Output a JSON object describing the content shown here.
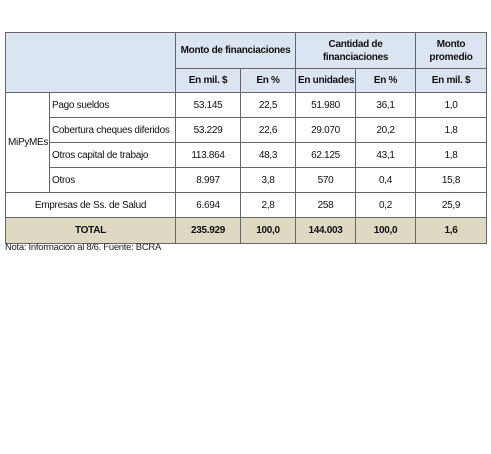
{
  "table": {
    "group_headers": [
      "Monto de financiaciones",
      "Cantidad de financiaciones",
      "Monto promedio"
    ],
    "sub_headers": [
      "En mil. $",
      "En %",
      "En unidades",
      "En %",
      "En mil. $"
    ],
    "group_label": "MiPyMEs",
    "group_rows": [
      {
        "label": "Pago sueldos",
        "cells": [
          "53.145",
          "22,5",
          "51.980",
          "36,1",
          "1,0"
        ]
      },
      {
        "label": "Cobertura cheques diferidos",
        "cells": [
          "53.229",
          "22,6",
          "29.070",
          "20,2",
          "1,8"
        ]
      },
      {
        "label": "Otros capital de trabajo",
        "cells": [
          "113.864",
          "48,3",
          "62.125",
          "43,1",
          "1,8"
        ]
      },
      {
        "label": "Otros",
        "cells": [
          "8.997",
          "3,8",
          "570",
          "0,4",
          "15,8"
        ]
      }
    ],
    "other_row": {
      "label": "Empresas de Ss. de Salud",
      "cells": [
        "6.694",
        "2,8",
        "258",
        "0,2",
        "25,9"
      ]
    },
    "total_row": {
      "label": "TOTAL",
      "cells": [
        "235.929",
        "100,0",
        "144.003",
        "100,0",
        "1,6"
      ]
    }
  },
  "note": "Nota: Información al 8/6. Fuente: BCRA"
}
